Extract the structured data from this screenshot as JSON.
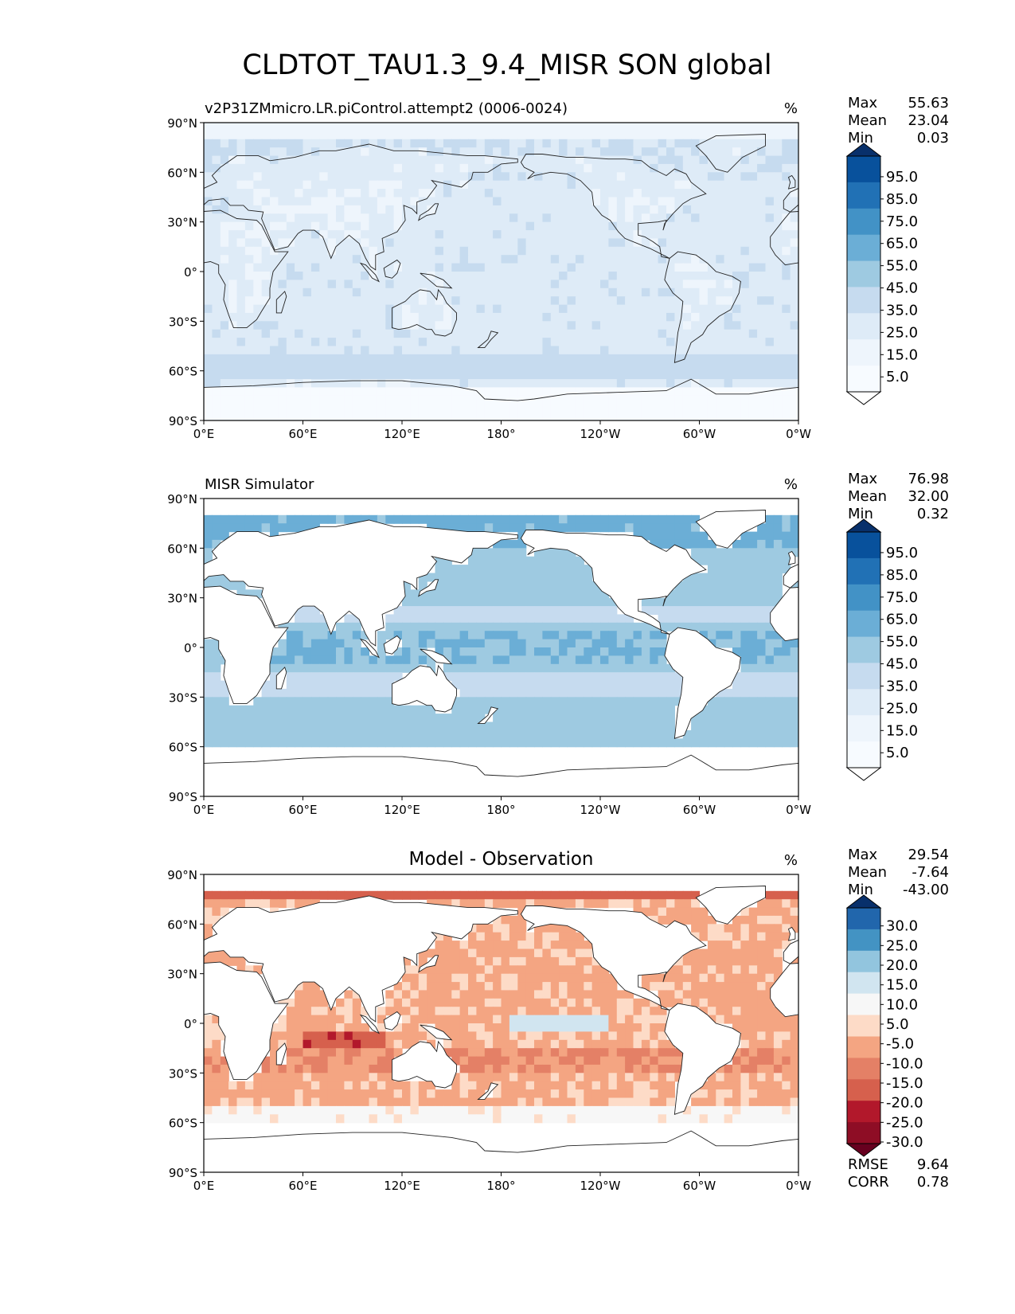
{
  "title": "CLDTOT_TAU1.3_9.4_MISR SON global",
  "chart_data": [
    {
      "type": "heatmap",
      "panel": "model",
      "title": "v2P31ZMmicro.LR.piControl.attempt2 (0006-0024)",
      "units": "%",
      "xlim": [
        0,
        360
      ],
      "ylim": [
        -90,
        90
      ],
      "xticks": [
        "0°E",
        "60°E",
        "120°E",
        "180°",
        "120°W",
        "60°W",
        "0°W"
      ],
      "yticks": [
        "90°N",
        "60°N",
        "30°N",
        "0°",
        "30°S",
        "60°S",
        "90°S"
      ],
      "stats": [
        {
          "label": "Max",
          "value": "55.63"
        },
        {
          "label": "Mean",
          "value": "23.04"
        },
        {
          "label": "Min",
          "value": "0.03"
        }
      ],
      "colorbar": {
        "levels": [
          "95.0",
          "85.0",
          "75.0",
          "65.0",
          "55.0",
          "45.0",
          "35.0",
          "25.0",
          "15.0",
          "5.0"
        ],
        "colors": [
          "#08306b",
          "#08519c",
          "#2171b5",
          "#4292c6",
          "#6baed6",
          "#9ecae1",
          "#c6dbef",
          "#deebf7",
          "#eef5fc",
          "#f7fbff"
        ]
      },
      "field": {
        "mode": "model",
        "coverage_lat": [
          -90,
          90
        ],
        "base": "#bcd7ec"
      }
    },
    {
      "type": "heatmap",
      "panel": "observation",
      "title": "MISR Simulator",
      "units": "%",
      "xlim": [
        0,
        360
      ],
      "ylim": [
        -90,
        90
      ],
      "xticks": [
        "0°E",
        "60°E",
        "120°E",
        "180°",
        "120°W",
        "60°W",
        "0°W"
      ],
      "yticks": [
        "90°N",
        "60°N",
        "30°N",
        "0°",
        "30°S",
        "60°S",
        "90°S"
      ],
      "stats": [
        {
          "label": "Max",
          "value": "76.98"
        },
        {
          "label": "Mean",
          "value": "32.00"
        },
        {
          "label": "Min",
          "value": "0.32"
        }
      ],
      "colorbar": {
        "levels": [
          "95.0",
          "85.0",
          "75.0",
          "65.0",
          "55.0",
          "45.0",
          "35.0",
          "25.0",
          "15.0",
          "5.0"
        ],
        "colors": [
          "#08306b",
          "#08519c",
          "#2171b5",
          "#4292c6",
          "#6baed6",
          "#9ecae1",
          "#c6dbef",
          "#deebf7",
          "#eef5fc",
          "#f7fbff"
        ]
      },
      "field": {
        "mode": "obs",
        "coverage_lat": [
          -62,
          80
        ],
        "base": "#9ecae1"
      }
    },
    {
      "type": "heatmap",
      "panel": "difference",
      "title": "Model - Observation",
      "units": "%",
      "xlim": [
        0,
        360
      ],
      "ylim": [
        -90,
        90
      ],
      "xticks": [
        "0°E",
        "60°E",
        "120°E",
        "180°",
        "120°W",
        "60°W",
        "0°W"
      ],
      "yticks": [
        "90°N",
        "60°N",
        "30°N",
        "0°",
        "30°S",
        "60°S",
        "90°S"
      ],
      "stats": [
        {
          "label": "Max",
          "value": "29.54"
        },
        {
          "label": "Mean",
          "value": "-7.64"
        },
        {
          "label": "Min",
          "value": "-43.00"
        }
      ],
      "colorbar": {
        "levels": [
          "30.0",
          "25.0",
          "20.0",
          "15.0",
          "10.0",
          "5.0",
          "-5.0",
          "-10.0",
          "-15.0",
          "-20.0",
          "-25.0",
          "-30.0"
        ],
        "colors": [
          "#08306b",
          "#2166ac",
          "#4393c3",
          "#92c5de",
          "#d1e5f0",
          "#f7f7f7",
          "#fddbc7",
          "#f4a582",
          "#e48066",
          "#d6604d",
          "#b2182b",
          "#8e0d25",
          "#67001f"
        ]
      },
      "metrics": [
        {
          "label": "RMSE",
          "value": "9.64"
        },
        {
          "label": "CORR",
          "value": "0.78"
        }
      ],
      "field": {
        "mode": "diff",
        "coverage_lat": [
          -62,
          80
        ],
        "base": "#fde0d2"
      }
    }
  ]
}
